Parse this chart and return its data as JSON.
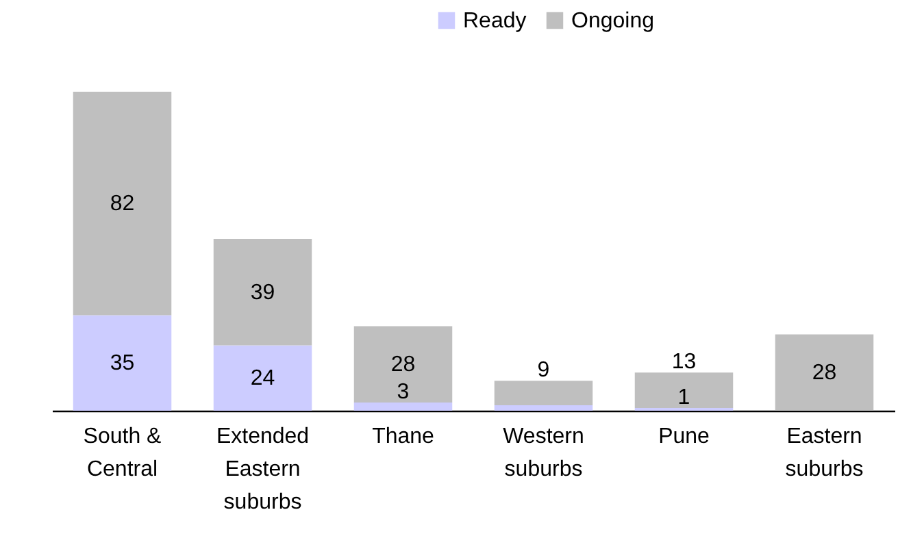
{
  "chart_data": {
    "type": "bar",
    "stacked": true,
    "legend": "top",
    "categories": [
      "South & Central",
      "Extended Eastern suburbs",
      "Thane",
      "Western suburbs",
      "Pune",
      "Eastern suburbs"
    ],
    "series": [
      {
        "name": "Ready",
        "color": "#ccccff",
        "values": [
          35,
          24,
          3,
          2,
          1,
          null
        ],
        "value_labels": [
          "35",
          "24",
          "3",
          null,
          "1",
          null
        ]
      },
      {
        "name": "Ongoing",
        "color": "#bfbfbf",
        "values": [
          82,
          39,
          28,
          9,
          13,
          28
        ],
        "value_labels": [
          "82",
          "39",
          "28",
          "9",
          "13",
          "28"
        ]
      }
    ]
  }
}
